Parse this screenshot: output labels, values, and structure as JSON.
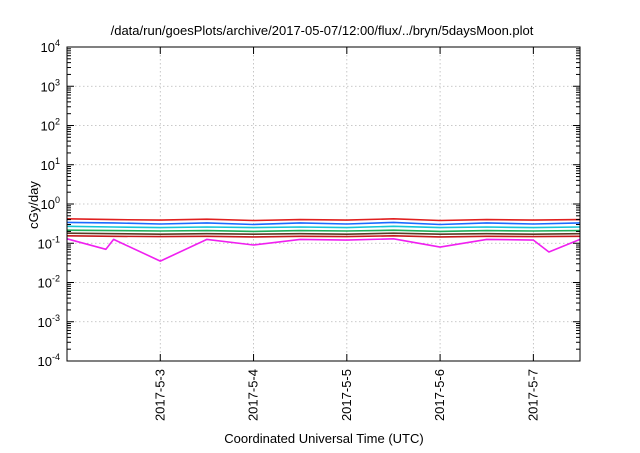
{
  "chart_data": {
    "type": "line",
    "title": "/data/run/goesPlots/archive/2017-05-07/12:00/flux/../bryn/5daysMoon.plot",
    "xlabel": "Coordinated Universal Time (UTC)",
    "ylabel": "cGy/day",
    "yscale": "log",
    "ylim": [
      0.0001,
      10000
    ],
    "ytick_base": "10",
    "ytick_exponents": [
      "-4",
      "-3",
      "-2",
      "-1",
      "0",
      "1",
      "2",
      "3",
      "4"
    ],
    "xlim": [
      "2017-05-02T00:00",
      "2017-05-07T12:00"
    ],
    "xticks": [
      {
        "x": "2017-05-03T00:00",
        "label": "2017-5-3"
      },
      {
        "x": "2017-05-04T00:00",
        "label": "2017-5-4"
      },
      {
        "x": "2017-05-05T00:00",
        "label": "2017-5-5"
      },
      {
        "x": "2017-05-06T00:00",
        "label": "2017-5-6"
      },
      {
        "x": "2017-05-07T00:00",
        "label": "2017-5-7"
      }
    ],
    "grid": true,
    "legend": "none",
    "series": [
      {
        "color": "#e02020",
        "x": [
          "2017-05-02T00:00",
          "2017-05-02T12:00",
          "2017-05-03T00:00",
          "2017-05-03T12:00",
          "2017-05-04T00:00",
          "2017-05-04T12:00",
          "2017-05-05T00:00",
          "2017-05-05T12:00",
          "2017-05-06T00:00",
          "2017-05-06T12:00",
          "2017-05-07T00:00",
          "2017-05-07T12:00"
        ],
        "y": [
          0.42,
          0.4,
          0.39,
          0.41,
          0.38,
          0.4,
          0.39,
          0.42,
          0.38,
          0.4,
          0.39,
          0.4
        ]
      },
      {
        "color": "#1a6bff",
        "x": [
          "2017-05-02T00:00",
          "2017-05-02T12:00",
          "2017-05-03T00:00",
          "2017-05-03T12:00",
          "2017-05-04T00:00",
          "2017-05-04T12:00",
          "2017-05-05T00:00",
          "2017-05-05T12:00",
          "2017-05-06T00:00",
          "2017-05-06T12:00",
          "2017-05-07T00:00",
          "2017-05-07T12:00"
        ],
        "y": [
          0.34,
          0.33,
          0.31,
          0.33,
          0.3,
          0.33,
          0.31,
          0.34,
          0.3,
          0.33,
          0.31,
          0.33
        ]
      },
      {
        "color": "#13c6d6",
        "x": [
          "2017-05-02T00:00",
          "2017-05-02T12:00",
          "2017-05-03T00:00",
          "2017-05-03T12:00",
          "2017-05-04T00:00",
          "2017-05-04T12:00",
          "2017-05-05T00:00",
          "2017-05-05T12:00",
          "2017-05-06T00:00",
          "2017-05-06T12:00",
          "2017-05-07T00:00",
          "2017-05-07T12:00"
        ],
        "y": [
          0.27,
          0.26,
          0.25,
          0.26,
          0.25,
          0.26,
          0.25,
          0.27,
          0.25,
          0.26,
          0.25,
          0.26
        ]
      },
      {
        "color": "#1fae5a",
        "x": [
          "2017-05-02T00:00",
          "2017-05-02T12:00",
          "2017-05-03T00:00",
          "2017-05-03T12:00",
          "2017-05-04T00:00",
          "2017-05-04T12:00",
          "2017-05-05T00:00",
          "2017-05-05T12:00",
          "2017-05-06T00:00",
          "2017-05-06T12:00",
          "2017-05-07T00:00",
          "2017-05-07T12:00"
        ],
        "y": [
          0.215,
          0.21,
          0.205,
          0.21,
          0.2,
          0.21,
          0.205,
          0.215,
          0.2,
          0.21,
          0.205,
          0.21
        ]
      },
      {
        "color": "#5a3a22",
        "x": [
          "2017-05-02T00:00",
          "2017-05-02T12:00",
          "2017-05-03T00:00",
          "2017-05-03T12:00",
          "2017-05-04T00:00",
          "2017-05-04T12:00",
          "2017-05-05T00:00",
          "2017-05-05T12:00",
          "2017-05-06T00:00",
          "2017-05-06T12:00",
          "2017-05-07T00:00",
          "2017-05-07T12:00"
        ],
        "y": [
          0.18,
          0.175,
          0.17,
          0.175,
          0.17,
          0.175,
          0.17,
          0.18,
          0.17,
          0.175,
          0.17,
          0.175
        ]
      },
      {
        "color": "#c41a1a",
        "x": [
          "2017-05-02T00:00",
          "2017-05-02T12:00",
          "2017-05-03T00:00",
          "2017-05-03T12:00",
          "2017-05-04T00:00",
          "2017-05-04T12:00",
          "2017-05-05T00:00",
          "2017-05-05T12:00",
          "2017-05-06T00:00",
          "2017-05-06T12:00",
          "2017-05-07T00:00",
          "2017-05-07T12:00"
        ],
        "y": [
          0.155,
          0.15,
          0.148,
          0.15,
          0.145,
          0.15,
          0.148,
          0.155,
          0.145,
          0.15,
          0.148,
          0.15
        ]
      },
      {
        "color": "#f020f0",
        "x": [
          "2017-05-02T00:00",
          "2017-05-02T10:00",
          "2017-05-02T12:00",
          "2017-05-03T00:00",
          "2017-05-03T12:00",
          "2017-05-04T00:00",
          "2017-05-04T12:00",
          "2017-05-05T00:00",
          "2017-05-05T12:00",
          "2017-05-06T00:00",
          "2017-05-06T12:00",
          "2017-05-07T00:00",
          "2017-05-07T04:00",
          "2017-05-07T12:00"
        ],
        "y": [
          0.13,
          0.07,
          0.125,
          0.035,
          0.125,
          0.09,
          0.125,
          0.12,
          0.13,
          0.08,
          0.125,
          0.12,
          0.06,
          0.125
        ]
      }
    ]
  }
}
